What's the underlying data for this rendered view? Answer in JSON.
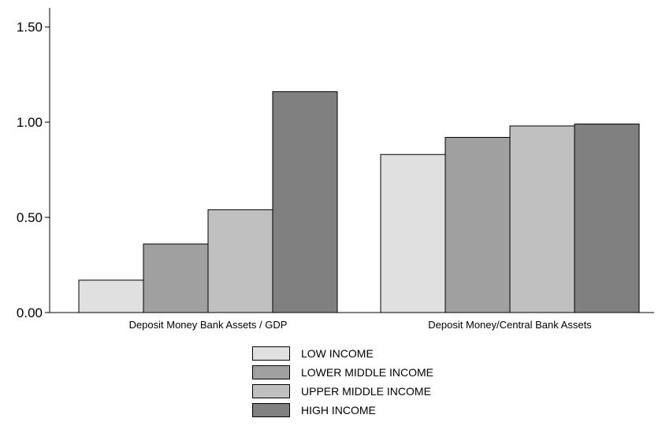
{
  "chart_data": {
    "type": "bar",
    "title": "",
    "xlabel": "",
    "ylabel": "",
    "ylim": [
      0,
      1.6
    ],
    "yticks": [
      "0.00",
      "0.50",
      "1.00",
      "1.50"
    ],
    "grid": false,
    "legend_position": "bottom",
    "categories": [
      "Deposit Money Bank Assets / GDP",
      "Deposit Money/Central Bank Assets"
    ],
    "series": [
      {
        "name": "LOW INCOME",
        "color": "#e0e0e0",
        "values": [
          0.17,
          0.83
        ]
      },
      {
        "name": "LOWER MIDDLE INCOME",
        "color": "#a0a0a0",
        "values": [
          0.36,
          0.92
        ]
      },
      {
        "name": "UPPER MIDDLE INCOME",
        "color": "#c0c0c0",
        "values": [
          0.54,
          0.98
        ]
      },
      {
        "name": "HIGH INCOME",
        "color": "#808080",
        "values": [
          1.16,
          0.99
        ]
      }
    ]
  }
}
